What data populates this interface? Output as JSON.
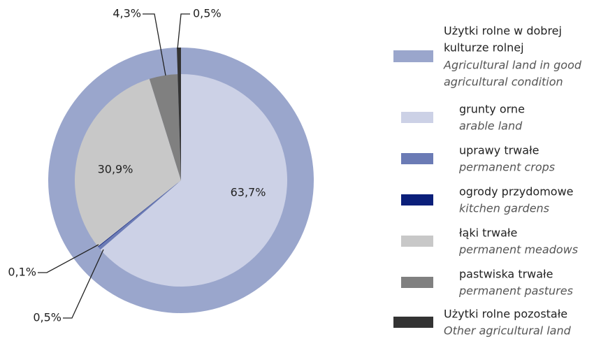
{
  "chart_data": {
    "type": "pie",
    "outer_ring": {
      "name": [
        "Użytki rolne w dobrej",
        "kulturze rolnej"
      ],
      "name_en": [
        "Agricultural land in good",
        "agricultural condition"
      ],
      "color": "#9aa6cc"
    },
    "categories": [
      "grunty orne",
      "uprawy trwałe",
      "ogrody przydomowe",
      "łąki trwałe",
      "pastwiska trwałe",
      "Użytki rolne pozostałe"
    ],
    "categories_en": [
      "arable land",
      "permanent crops",
      "kitchen gardens",
      "permanent meadows",
      "permanent pastures",
      "Other agricultural land"
    ],
    "values": [
      63.7,
      0.5,
      0.1,
      30.9,
      4.3,
      0.5
    ],
    "value_labels": [
      "63,7%",
      "0,5%",
      "0,1%",
      "30,9%",
      "4,3%",
      "0,5%"
    ],
    "colors": [
      "#ccd1e6",
      "#6b7bb5",
      "#0b1f7a",
      "#c8c8c8",
      "#808080",
      "#333333"
    ]
  }
}
